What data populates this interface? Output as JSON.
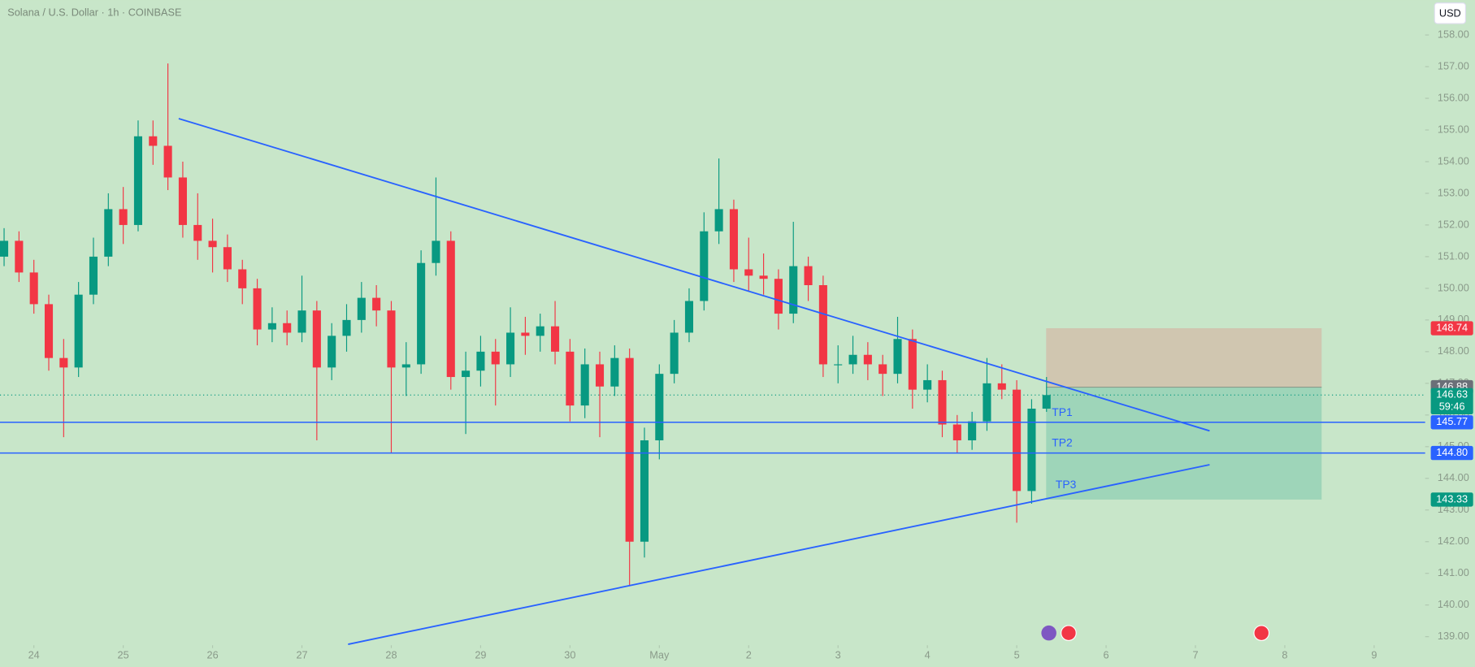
{
  "chart_data": {
    "type": "candlestick",
    "title": "Solana / U.S. Dollar · 1h · COINBASE",
    "currency": "USD",
    "up_color": "#089981",
    "down_color": "#f23645",
    "line_color": "#2962ff",
    "xlim": [
      -9.1,
      373.7
    ],
    "ylim": [
      138.73,
      159.1
    ],
    "xticks": [
      {
        "value": 0,
        "label": "24"
      },
      {
        "value": 24,
        "label": "25"
      },
      {
        "value": 48,
        "label": "26"
      },
      {
        "value": 72,
        "label": "27"
      },
      {
        "value": 96,
        "label": "28"
      },
      {
        "value": 120,
        "label": "29"
      },
      {
        "value": 144,
        "label": "30"
      },
      {
        "value": 168,
        "label": "May"
      },
      {
        "value": 192,
        "label": "2"
      },
      {
        "value": 216,
        "label": "3"
      },
      {
        "value": 240,
        "label": "4"
      },
      {
        "value": 264,
        "label": "5"
      },
      {
        "value": 288,
        "label": "6"
      },
      {
        "value": 312,
        "label": "7"
      },
      {
        "value": 336,
        "label": "8"
      },
      {
        "value": 360,
        "label": "9"
      }
    ],
    "yticks": [
      {
        "value": 158,
        "label": "158.00"
      },
      {
        "value": 157,
        "label": "157.00"
      },
      {
        "value": 156,
        "label": "156.00"
      },
      {
        "value": 155,
        "label": "155.00"
      },
      {
        "value": 154,
        "label": "154.00"
      },
      {
        "value": 153,
        "label": "153.00"
      },
      {
        "value": 152,
        "label": "152.00"
      },
      {
        "value": 151,
        "label": "151.00"
      },
      {
        "value": 150,
        "label": "150.00"
      },
      {
        "value": 149,
        "label": "149.00"
      },
      {
        "value": 148,
        "label": "148.00"
      },
      {
        "value": 147,
        "label": "147.00"
      },
      {
        "value": 146,
        "label": "146.00"
      },
      {
        "value": 145,
        "label": "145.00"
      },
      {
        "value": 144,
        "label": "144.00"
      },
      {
        "value": 143,
        "label": "143.00"
      },
      {
        "value": 142,
        "label": "142.00"
      },
      {
        "value": 141,
        "label": "141.00"
      },
      {
        "value": 140,
        "label": "140.00"
      },
      {
        "value": 139,
        "label": "139.00"
      }
    ],
    "x": [
      -8,
      -4,
      0,
      4,
      8,
      12,
      16,
      20,
      24,
      28,
      32,
      36,
      40,
      44,
      48,
      52,
      56,
      60,
      64,
      68,
      72,
      76,
      80,
      84,
      88,
      92,
      96,
      100,
      104,
      108,
      112,
      116,
      120,
      124,
      128,
      132,
      136,
      140,
      144,
      148,
      152,
      156,
      160,
      164,
      168,
      172,
      176,
      180,
      184,
      188,
      192,
      196,
      200,
      204,
      208,
      212,
      216,
      220,
      224,
      228,
      232,
      236,
      240,
      244,
      248,
      252,
      256,
      260,
      264,
      268,
      272
    ],
    "candles": [
      [
        151.0,
        151.9,
        150.7,
        151.5
      ],
      [
        151.5,
        151.8,
        150.2,
        150.5
      ],
      [
        150.5,
        150.9,
        149.2,
        149.5
      ],
      [
        149.5,
        149.8,
        147.4,
        147.8
      ],
      [
        147.8,
        148.4,
        145.3,
        147.5
      ],
      [
        147.5,
        150.2,
        147.2,
        149.8
      ],
      [
        149.8,
        151.6,
        149.5,
        151
      ],
      [
        151,
        153,
        150.7,
        152.5
      ],
      [
        152.5,
        153.2,
        151.4,
        152
      ],
      [
        152,
        155.3,
        151.8,
        154.8
      ],
      [
        154.8,
        155.3,
        153.9,
        154.5
      ],
      [
        154.5,
        157.1,
        153.1,
        153.5
      ],
      [
        153.5,
        154,
        151.6,
        152
      ],
      [
        152,
        153,
        150.9,
        151.5
      ],
      [
        151.5,
        152.2,
        150.5,
        151.3
      ],
      [
        151.3,
        151.7,
        150.2,
        150.6
      ],
      [
        150.6,
        150.9,
        149.5,
        150
      ],
      [
        150,
        150.3,
        148.2,
        148.7
      ],
      [
        148.7,
        149.4,
        148.3,
        148.9
      ],
      [
        148.9,
        149.3,
        148.2,
        148.6
      ],
      [
        148.6,
        150.4,
        148.3,
        149.3
      ],
      [
        149.3,
        149.6,
        145.2,
        147.5
      ],
      [
        147.5,
        148.9,
        147.1,
        148.5
      ],
      [
        148.5,
        149.5,
        148,
        149
      ],
      [
        149,
        150.2,
        148.6,
        149.7
      ],
      [
        149.7,
        150.1,
        148.8,
        149.3
      ],
      [
        149.3,
        149.6,
        144.8,
        147.5
      ],
      [
        147.5,
        148.3,
        146.6,
        147.6
      ],
      [
        147.6,
        151.2,
        147.3,
        150.8
      ],
      [
        150.8,
        153.5,
        150.4,
        151.5
      ],
      [
        151.5,
        151.8,
        146.8,
        147.2
      ],
      [
        147.2,
        148,
        145.4,
        147.4
      ],
      [
        147.4,
        148.5,
        146.9,
        148
      ],
      [
        148,
        148.4,
        146.3,
        147.6
      ],
      [
        147.6,
        149.4,
        147.2,
        148.6
      ],
      [
        148.6,
        149.1,
        147.9,
        148.5
      ],
      [
        148.5,
        149.2,
        148,
        148.8
      ],
      [
        148.8,
        149.6,
        147.6,
        148
      ],
      [
        148,
        148.4,
        145.8,
        146.3
      ],
      [
        146.3,
        148.1,
        145.9,
        147.6
      ],
      [
        147.6,
        148,
        145.3,
        146.9
      ],
      [
        146.9,
        148.2,
        146.6,
        147.8
      ],
      [
        147.8,
        148.1,
        140.6,
        142
      ],
      [
        142,
        145.6,
        141.5,
        145.2
      ],
      [
        145.2,
        147.6,
        144.6,
        147.3
      ],
      [
        147.3,
        149,
        147,
        148.6
      ],
      [
        148.6,
        150,
        148.3,
        149.6
      ],
      [
        149.6,
        152.4,
        149.3,
        151.8
      ],
      [
        151.8,
        154.1,
        151.4,
        152.5
      ],
      [
        152.5,
        152.8,
        150.2,
        150.6
      ],
      [
        150.6,
        151.6,
        149.9,
        150.4
      ],
      [
        150.4,
        151.1,
        149.8,
        150.3
      ],
      [
        150.3,
        150.6,
        148.7,
        149.2
      ],
      [
        149.2,
        152.1,
        148.9,
        150.7
      ],
      [
        150.7,
        151,
        149.6,
        150.1
      ],
      [
        150.1,
        150.4,
        147.2,
        147.6
      ],
      [
        147.6,
        148.2,
        147,
        147.6
      ],
      [
        147.6,
        148.5,
        147.3,
        147.9
      ],
      [
        147.9,
        148.3,
        147.1,
        147.6
      ],
      [
        147.6,
        147.9,
        146.6,
        147.3
      ],
      [
        147.3,
        149.1,
        147,
        148.4
      ],
      [
        148.4,
        148.7,
        146.2,
        146.8
      ],
      [
        146.8,
        147.6,
        146.4,
        147.1
      ],
      [
        147.1,
        147.4,
        145.3,
        145.7
      ],
      [
        145.7,
        146,
        144.8,
        145.2
      ],
      [
        145.2,
        146.1,
        144.9,
        145.8
      ],
      [
        145.8,
        147.8,
        145.5,
        147
      ],
      [
        147,
        147.6,
        146.5,
        146.8
      ],
      [
        146.8,
        147.1,
        142.6,
        143.6
      ],
      [
        143.6,
        146.5,
        143.2,
        146.2
      ],
      [
        146.2,
        147.2,
        146.1,
        146.63
      ]
    ],
    "trendlines": [
      {
        "x": [
          38.9,
          315.8
        ],
        "y": [
          155.36,
          145.5
        ]
      },
      {
        "x": [
          84.4,
          315.8
        ],
        "y": [
          138.76,
          144.43
        ]
      }
    ],
    "levels": [
      {
        "name": "TP1",
        "value": 145.77,
        "label": "145.77"
      },
      {
        "name": "TP2",
        "value": 144.8,
        "label": "144.80"
      }
    ],
    "position": {
      "x": [
        271.9,
        345.9
      ],
      "stop": {
        "value": 148.74,
        "label": "148.74"
      },
      "entry": {
        "value": 146.88,
        "label": "146.88"
      },
      "target": {
        "name": "TP3",
        "value": 143.33,
        "label": "143.33"
      }
    },
    "last": {
      "value": 146.63,
      "label": "146.63",
      "countdown": "59:46"
    }
  }
}
